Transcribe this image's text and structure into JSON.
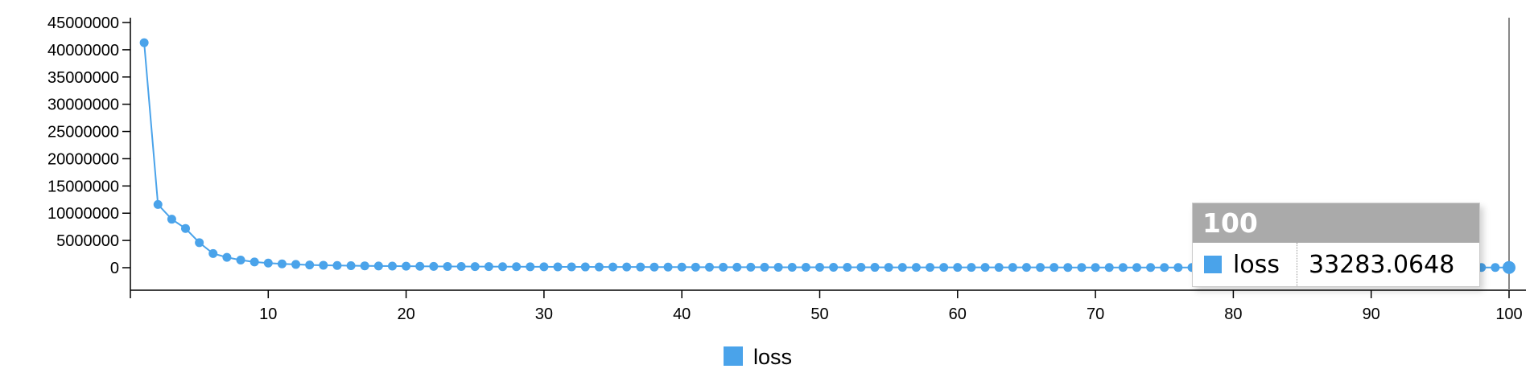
{
  "chart_data": {
    "type": "line",
    "x": [
      1,
      2,
      3,
      4,
      5,
      6,
      7,
      8,
      9,
      10,
      11,
      12,
      13,
      14,
      15,
      16,
      17,
      18,
      19,
      20,
      21,
      22,
      23,
      24,
      25,
      26,
      27,
      28,
      29,
      30,
      31,
      32,
      33,
      34,
      35,
      36,
      37,
      38,
      39,
      40,
      41,
      42,
      43,
      44,
      45,
      46,
      47,
      48,
      49,
      50,
      51,
      52,
      53,
      54,
      55,
      56,
      57,
      58,
      59,
      60,
      61,
      62,
      63,
      64,
      65,
      66,
      67,
      68,
      69,
      70,
      71,
      72,
      73,
      74,
      75,
      76,
      77,
      78,
      79,
      80,
      81,
      82,
      83,
      84,
      85,
      86,
      87,
      88,
      89,
      90,
      91,
      92,
      93,
      94,
      95,
      96,
      97,
      98,
      99,
      100
    ],
    "series": [
      {
        "name": "loss",
        "color": "#4aa3ea",
        "values": [
          41300000,
          11600000,
          8900000,
          7200000,
          4600000,
          2600000,
          1900000,
          1400000,
          1050000,
          850000,
          700000,
          600000,
          500000,
          450000,
          400000,
          370000,
          340000,
          320000,
          300000,
          280000,
          260000,
          240000,
          230000,
          220000,
          210000,
          200000,
          190000,
          180000,
          170000,
          160000,
          150000,
          145000,
          140000,
          135000,
          130000,
          125000,
          120000,
          115000,
          110000,
          105000,
          100000,
          97000,
          94000,
          91000,
          88000,
          85000,
          82000,
          79000,
          76000,
          74000,
          72000,
          70000,
          68000,
          66000,
          64000,
          62000,
          60000,
          58000,
          56000,
          54000,
          53000,
          52000,
          51000,
          50000,
          49000,
          48000,
          47000,
          46000,
          45000,
          44000,
          43000,
          42500,
          42000,
          41500,
          41000,
          40500,
          40000,
          39500,
          39000,
          38500,
          38000,
          37500,
          37000,
          36500,
          36000,
          35800,
          35600,
          35400,
          35200,
          35000,
          34800,
          34600,
          34400,
          34200,
          34000,
          33800,
          33600,
          33500,
          33400,
          33283.0648
        ]
      }
    ],
    "y_ticks": [
      "0",
      "5000000",
      "10000000",
      "15000000",
      "20000000",
      "25000000",
      "30000000",
      "35000000",
      "40000000",
      "45000000"
    ],
    "x_ticks": [
      "10",
      "20",
      "30",
      "40",
      "50",
      "60",
      "70",
      "80",
      "90",
      "100"
    ],
    "ylim": [
      0,
      45000000
    ],
    "xlim": [
      0,
      100
    ],
    "legend": {
      "placement": "bottom-center",
      "entries": [
        "loss"
      ]
    },
    "grid": false
  },
  "tooltip": {
    "title": "100",
    "series_name": "loss",
    "value": "33283.0648",
    "swatch_color": "#4aa3ea"
  },
  "focus_line_color": "#888888"
}
